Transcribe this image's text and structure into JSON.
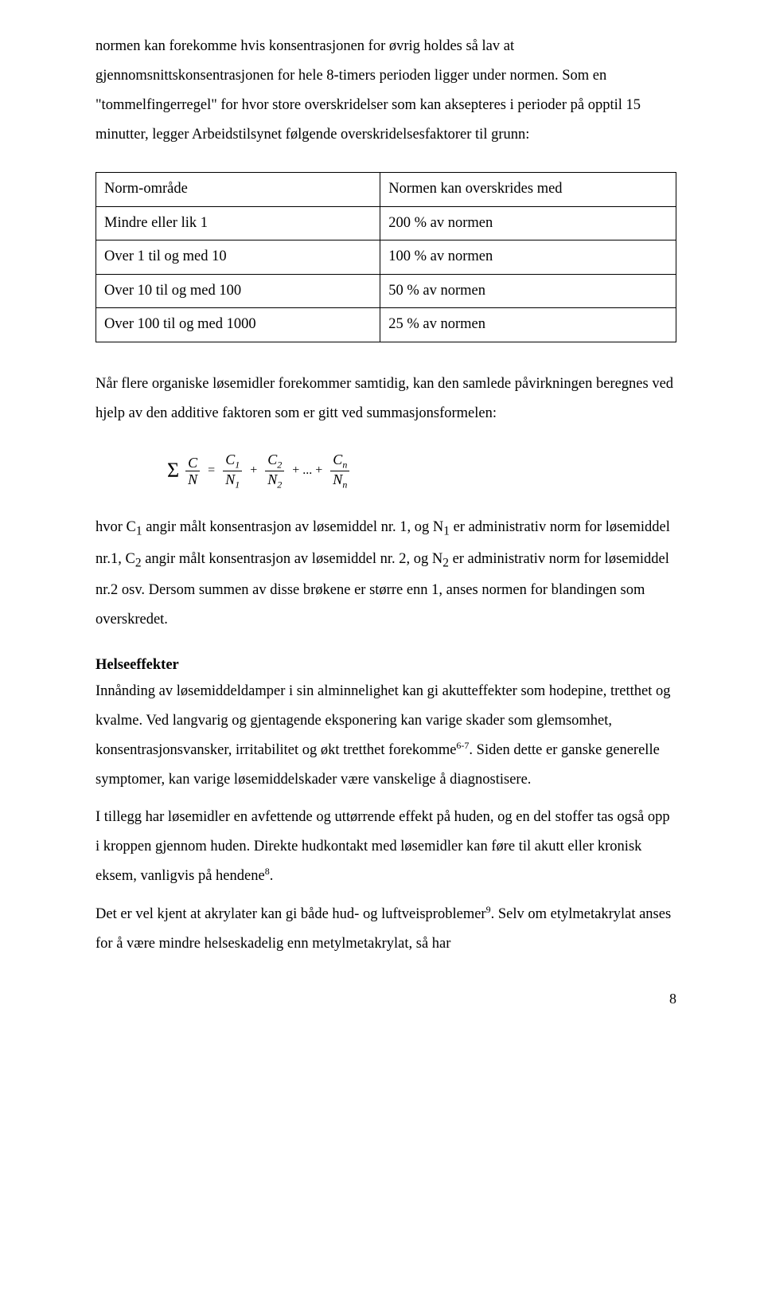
{
  "para1": "normen kan forekomme hvis konsentrasjonen for øvrig holdes så lav at gjennomsnittskonsentrasjonen for hele 8-timers perioden ligger under normen. Som en \"tommelfingerregel\" for hvor store overskridelser som kan aksepteres i perioder på opptil 15 minutter, legger Arbeidstilsynet følgende overskridelsesfaktorer til grunn:",
  "table": {
    "rows": [
      [
        "Norm-område",
        "Normen kan overskrides med"
      ],
      [
        "Mindre eller lik 1",
        "200 % av normen"
      ],
      [
        "Over 1 til og med 10",
        "100 % av normen"
      ],
      [
        "Over 10 til og med 100",
        "50  % av normen"
      ],
      [
        "Over 100 til og med 1000",
        "25 % av normen"
      ]
    ]
  },
  "para2": "Når flere organiske løsemidler forekommer samtidig, kan den samlede påvirkningen beregnes ved hjelp av den additive faktoren som er gitt ved summasjonsformelen:",
  "formula": {
    "sigma": "Σ",
    "t1n": "C",
    "t1d": "N",
    "eq": "=",
    "t2n": "C",
    "t2ns": "1",
    "t2d": "N",
    "t2ds": "1",
    "plus": "+",
    "t3n": "C",
    "t3ns": "2",
    "t3d": "N",
    "t3ds": "2",
    "dots": "+ ... +",
    "t4n": "C",
    "t4ns": "n",
    "t4d": "N",
    "t4ds": "n"
  },
  "para3_html": "hvor C<sub>1</sub> angir målt konsentrasjon av løsemiddel nr. 1, og N<sub>1</sub> er administrativ norm for løsemiddel nr.1, C<sub>2</sub> angir målt konsentrasjon av løsemiddel nr. 2, og N<sub>2</sub> er administrativ norm for løsemiddel nr.2 osv. Dersom summen av disse brøkene er større enn 1, anses normen for blandingen som overskredet.",
  "heading": "Helseeffekter",
  "para4_html": "Innånding av løsemiddeldamper i sin alminnelighet kan gi akutteffekter som hodepine, tretthet og kvalme. Ved langvarig og gjentagende eksponering kan varige skader som glemsomhet, konsentrasjonsvansker, irritabilitet og økt tretthet forekomme<sup>6-7</sup>. Siden dette er ganske generelle symptomer, kan varige løsemiddelskader være vanskelige å diagnostisere.",
  "para5_html": "I tillegg har løsemidler en avfettende og uttørrende effekt på huden, og  en del stoffer tas også opp i kroppen gjennom huden. Direkte hudkontakt med løsemidler kan føre til akutt eller kronisk eksem, vanligvis på hendene<sup>8</sup>.",
  "para6_html": "Det er vel kjent at akrylater kan gi både hud- og luftveisproblemer<sup>9</sup>. Selv om etylmetakrylat anses for å være mindre helseskadelig enn metylmetakrylat, så har",
  "pagenum": "8"
}
